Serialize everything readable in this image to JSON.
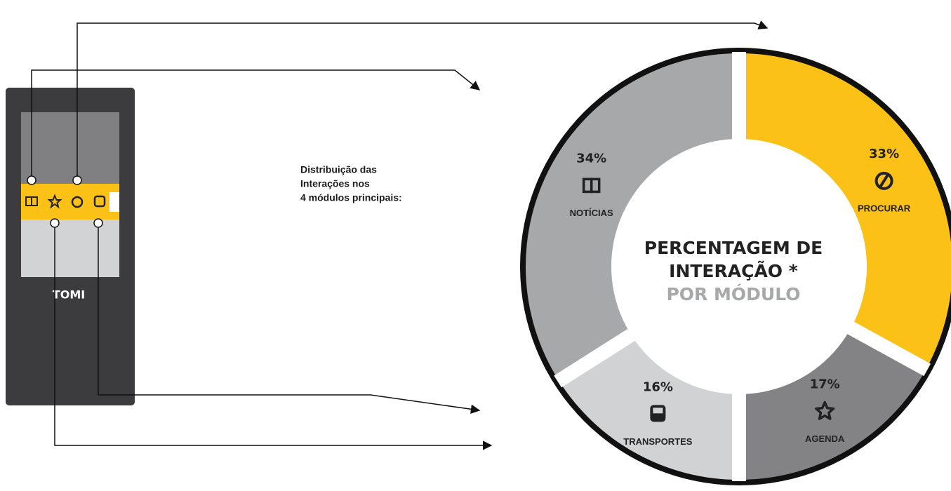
{
  "chart_data": {
    "type": "pie",
    "title": [
      "PERCENTAGEM DE",
      "INTERAÇÃO *"
    ],
    "subtitle": "POR MÓDULO",
    "annotation": [
      "Distribuição das",
      "Interações nos",
      "4 módulos principais:"
    ],
    "categories": [
      "PROCURAR",
      "AGENDA",
      "TRANSPORTES",
      "NOTÍCIAS"
    ],
    "values": [
      33,
      17,
      16,
      34
    ],
    "value_labels": [
      "33%",
      "17%",
      "16%",
      "34%"
    ],
    "colors": [
      "#fbc117",
      "#838385",
      "#d1d2d4",
      "#a7a8aa"
    ]
  },
  "device": {
    "label": "TOMI"
  }
}
